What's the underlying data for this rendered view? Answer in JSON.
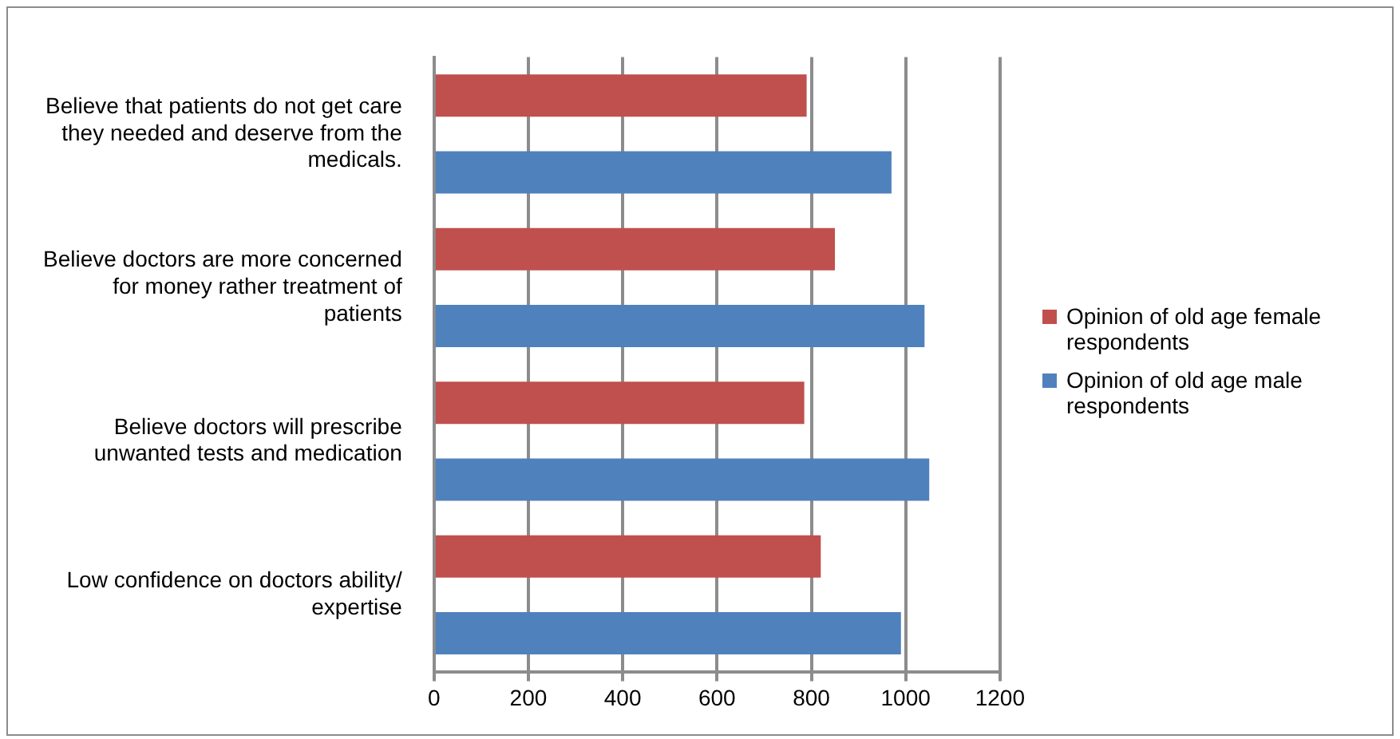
{
  "chart_data": {
    "type": "bar",
    "orientation": "horizontal",
    "categories": [
      "Believe that patients do not get care they needed and deserve from the medicals.",
      "Believe doctors are more concerned for money rather treatment of patients",
      "Believe doctors will prescribe unwanted tests and medication",
      "Low confidence on doctors ability/ expertise"
    ],
    "series": [
      {
        "name": "Opinion of old age female respondents",
        "color": "#c0504d",
        "values": [
          790,
          850,
          785,
          820
        ]
      },
      {
        "name": "Opinion of old age male respondents",
        "color": "#4f81bd",
        "values": [
          970,
          1040,
          1050,
          990
        ]
      }
    ],
    "xlim": [
      0,
      1200
    ],
    "xticks": [
      0,
      200,
      400,
      600,
      800,
      1000,
      1200
    ],
    "grid": "x",
    "legend": "right"
  }
}
